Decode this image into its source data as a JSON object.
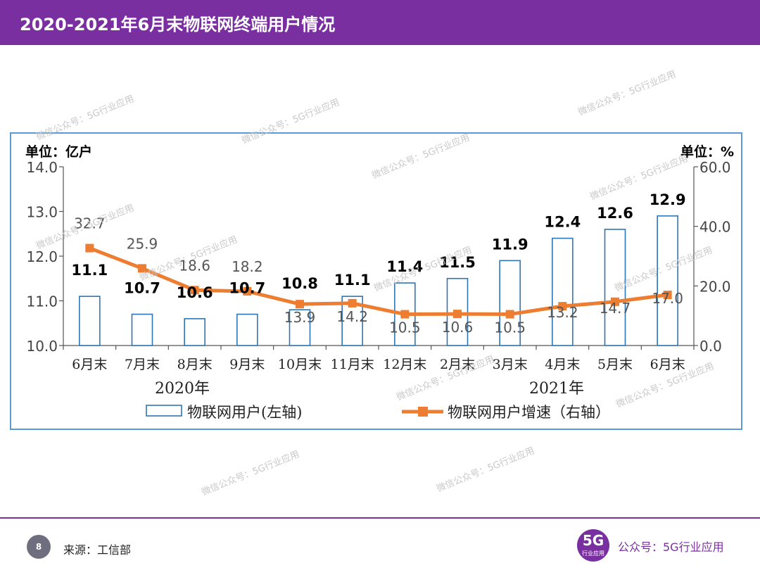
{
  "header": {
    "title": "2020-2021年6月末物联网终端用户情况"
  },
  "footer": {
    "page_number": "8",
    "source": "来源：工信部",
    "logo_text": "5G",
    "logo_sub": "行业应用",
    "account": "公众号：5G行业应用"
  },
  "watermark_text": "微信公众号：5G行业应用",
  "colors": {
    "accent": "#7a2fa0",
    "bar_stroke": "#2e75b6",
    "line": "#ed7d31",
    "frame": "#5b9bd5"
  },
  "chart_data": {
    "type": "bar+line",
    "categories": [
      "6月末",
      "7月末",
      "8月末",
      "9月末",
      "10月末",
      "11月末",
      "12月末",
      "2月末",
      "3月末",
      "4月末",
      "5月末",
      "6月末"
    ],
    "year_labels": [
      "2020年",
      "2021年"
    ],
    "left_unit": "单位：亿户",
    "right_unit": "单位：%",
    "left_ticks": [
      "10.0",
      "11.0",
      "12.0",
      "13.0",
      "14.0"
    ],
    "right_ticks": [
      "0.0",
      "20.0",
      "40.0",
      "60.0"
    ],
    "ylim_left": [
      10,
      14
    ],
    "ylim_right": [
      0,
      60
    ],
    "series": [
      {
        "name": "物联网用户(左轴)",
        "type": "bar",
        "axis": "left",
        "values": [
          11.1,
          10.7,
          10.6,
          10.7,
          10.8,
          11.1,
          11.4,
          11.5,
          11.9,
          12.4,
          12.6,
          12.9
        ],
        "labels": [
          "11.1",
          "10.7",
          "10.6",
          "10.7",
          "10.8",
          "11.1",
          "11.4",
          "11.5",
          "11.9",
          "12.4",
          "12.6",
          "12.9"
        ]
      },
      {
        "name": "物联网用户增速（右轴）",
        "type": "line",
        "axis": "right",
        "values": [
          32.7,
          25.9,
          18.6,
          18.2,
          13.9,
          14.2,
          10.5,
          10.6,
          10.5,
          13.2,
          14.7,
          17.0
        ],
        "labels": [
          "32.7",
          "25.9",
          "18.6",
          "18.2",
          "13.9",
          "14.2",
          "10.5",
          "10.6",
          "10.5",
          "13.2",
          "14.7",
          "17.0"
        ]
      }
    ],
    "legend_position": "bottom"
  }
}
